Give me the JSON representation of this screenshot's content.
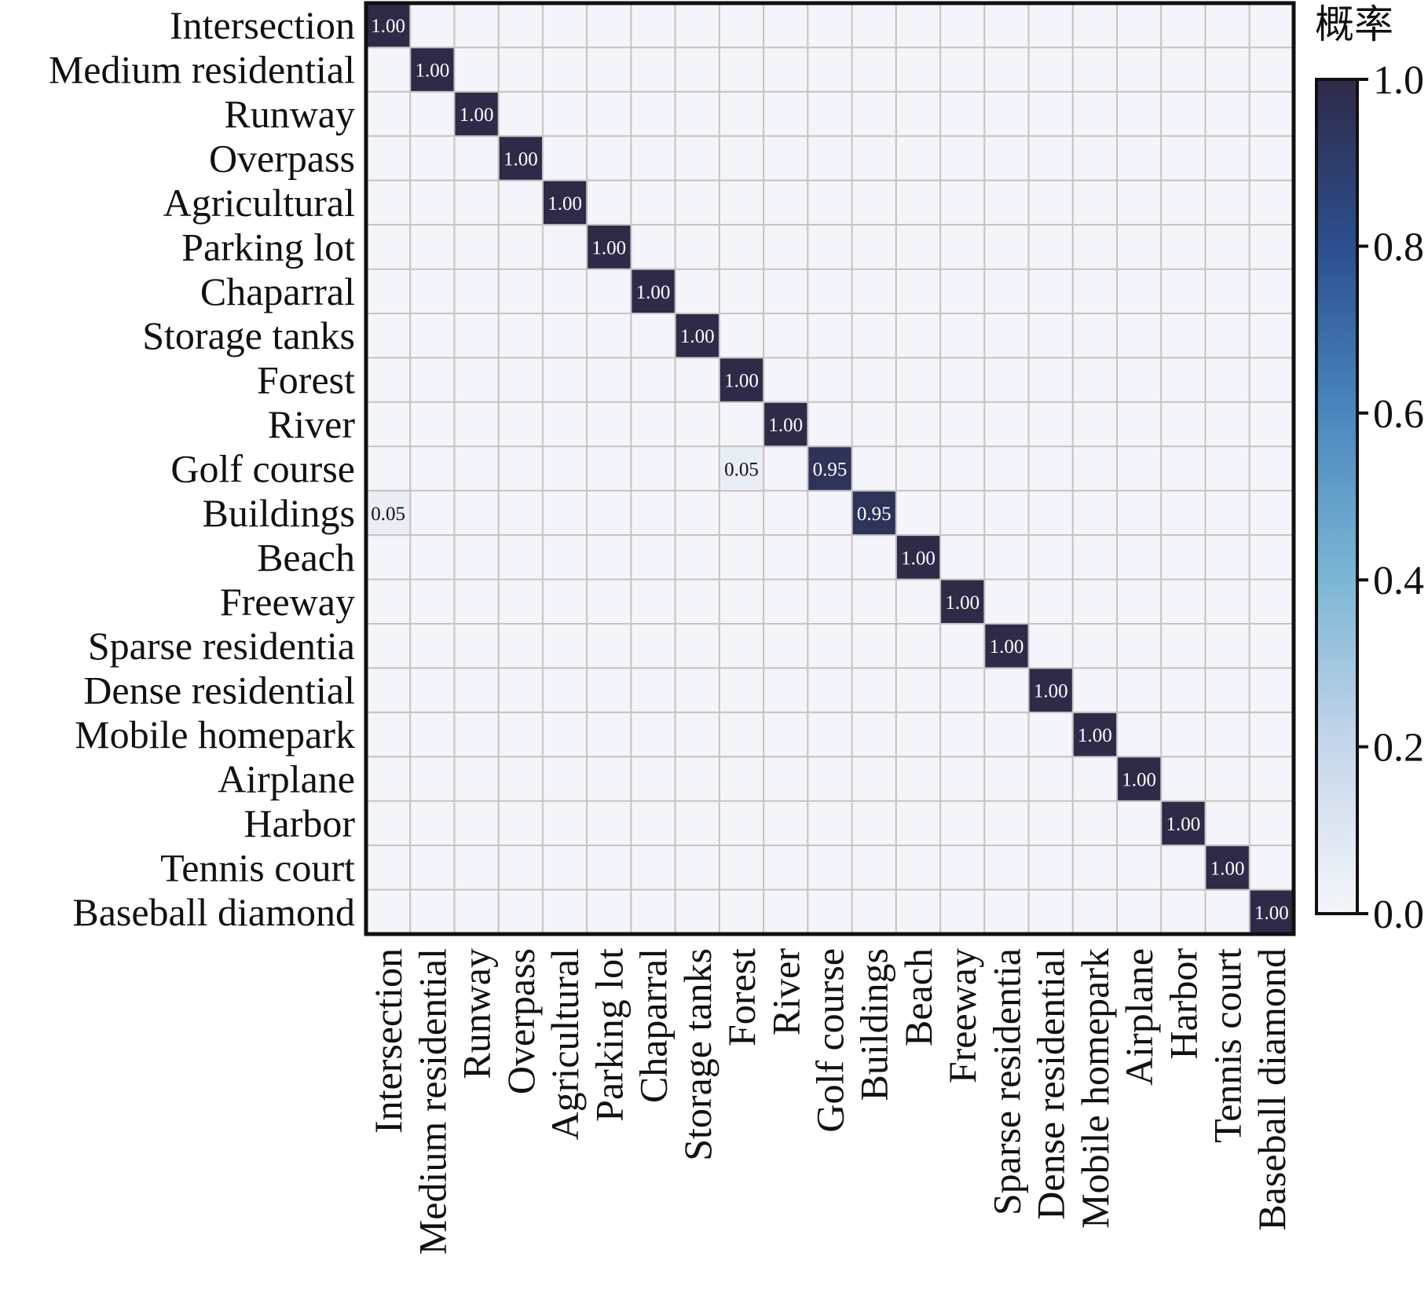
{
  "chart_data": {
    "type": "heatmap",
    "title": "",
    "xlabel": "",
    "ylabel": "",
    "row_labels": [
      "Intersection",
      "Medium residential",
      "Runway",
      "Overpass",
      "Agricultural",
      "Parking lot",
      "Chaparral",
      "Storage tanks",
      "Forest",
      "River",
      "Golf course",
      "Buildings",
      "Beach",
      "Freeway",
      "Sparse residentia",
      "Dense residential",
      "Mobile homepark",
      "Airplane",
      "Harbor",
      "Tennis court",
      "Baseball diamond"
    ],
    "col_labels": [
      "Intersection",
      "Medium residential",
      "Runway",
      "Overpass",
      "Agricultural",
      "Parking lot",
      "Chaparral",
      "Storage tanks",
      "Forest",
      "River",
      "Golf course",
      "Buildings",
      "Beach",
      "Freeway",
      "Sparse residentia",
      "Dense residential",
      "Mobile homepark",
      "Airplane",
      "Harbor",
      "Tennis court",
      "Baseball diamond"
    ],
    "cells": [
      {
        "row": 0,
        "col": 0,
        "value": 1.0,
        "label": "1.00"
      },
      {
        "row": 1,
        "col": 1,
        "value": 1.0,
        "label": "1.00"
      },
      {
        "row": 2,
        "col": 2,
        "value": 1.0,
        "label": "1.00"
      },
      {
        "row": 3,
        "col": 3,
        "value": 1.0,
        "label": "1.00"
      },
      {
        "row": 4,
        "col": 4,
        "value": 1.0,
        "label": "1.00"
      },
      {
        "row": 5,
        "col": 5,
        "value": 1.0,
        "label": "1.00"
      },
      {
        "row": 6,
        "col": 6,
        "value": 1.0,
        "label": "1.00"
      },
      {
        "row": 7,
        "col": 7,
        "value": 1.0,
        "label": "1.00"
      },
      {
        "row": 8,
        "col": 8,
        "value": 1.0,
        "label": "1.00"
      },
      {
        "row": 9,
        "col": 9,
        "value": 1.0,
        "label": "1.00"
      },
      {
        "row": 10,
        "col": 8,
        "value": 0.05,
        "label": "0.05"
      },
      {
        "row": 10,
        "col": 10,
        "value": 0.95,
        "label": "0.95"
      },
      {
        "row": 11,
        "col": 0,
        "value": 0.05,
        "label": "0.05"
      },
      {
        "row": 11,
        "col": 11,
        "value": 0.95,
        "label": "0.95"
      },
      {
        "row": 12,
        "col": 12,
        "value": 1.0,
        "label": "1.00"
      },
      {
        "row": 13,
        "col": 13,
        "value": 1.0,
        "label": "1.00"
      },
      {
        "row": 14,
        "col": 14,
        "value": 1.0,
        "label": "1.00"
      },
      {
        "row": 15,
        "col": 15,
        "value": 1.0,
        "label": "1.00"
      },
      {
        "row": 16,
        "col": 16,
        "value": 1.0,
        "label": "1.00"
      },
      {
        "row": 17,
        "col": 17,
        "value": 1.0,
        "label": "1.00"
      },
      {
        "row": 18,
        "col": 18,
        "value": 1.0,
        "label": "1.00"
      },
      {
        "row": 19,
        "col": 19,
        "value": 1.0,
        "label": "1.00"
      },
      {
        "row": 20,
        "col": 20,
        "value": 1.0,
        "label": "1.00"
      }
    ],
    "colorbar": {
      "title": "概率",
      "range": [
        0.0,
        1.0
      ],
      "ticks": [
        0.0,
        0.2,
        0.4,
        0.6,
        0.8,
        1.0
      ],
      "tick_labels": [
        "0.0",
        "0.2",
        "0.4",
        "0.6",
        "0.8",
        "1.0"
      ]
    },
    "colors": {
      "empty_cell": "#f4f5fa",
      "grid_line": "#c9c2c2",
      "frame": "#111111",
      "dark_text": "#ffffff",
      "light_text": "#111111",
      "colormap": [
        "#f4f6fa",
        "#c6d6ea",
        "#7cb6d5",
        "#4a87be",
        "#2c4f8e",
        "#2f2a48"
      ]
    }
  }
}
